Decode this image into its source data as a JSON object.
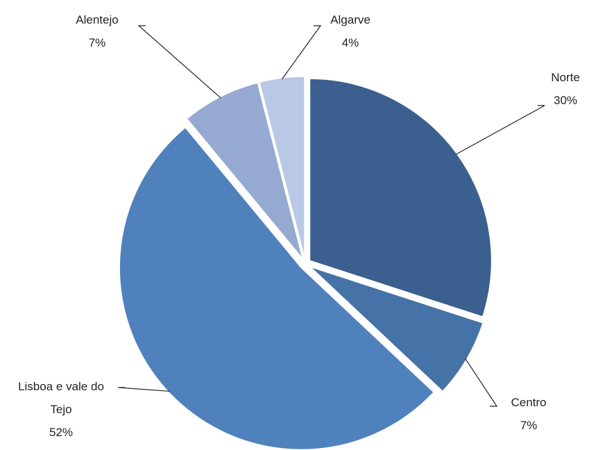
{
  "chart_data": {
    "type": "pie",
    "categories": [
      "Norte",
      "Centro",
      "Lisboa e vale do Tejo",
      "Alentejo",
      "Algarve"
    ],
    "values": [
      30,
      7,
      52,
      7,
      4
    ],
    "value_labels": [
      "30%",
      "7%",
      "52%",
      "7%",
      "4%"
    ],
    "colors": [
      "#3b5f8e",
      "#4572a7",
      "#4f81bd",
      "#95a9d1",
      "#b9c8e4"
    ]
  }
}
